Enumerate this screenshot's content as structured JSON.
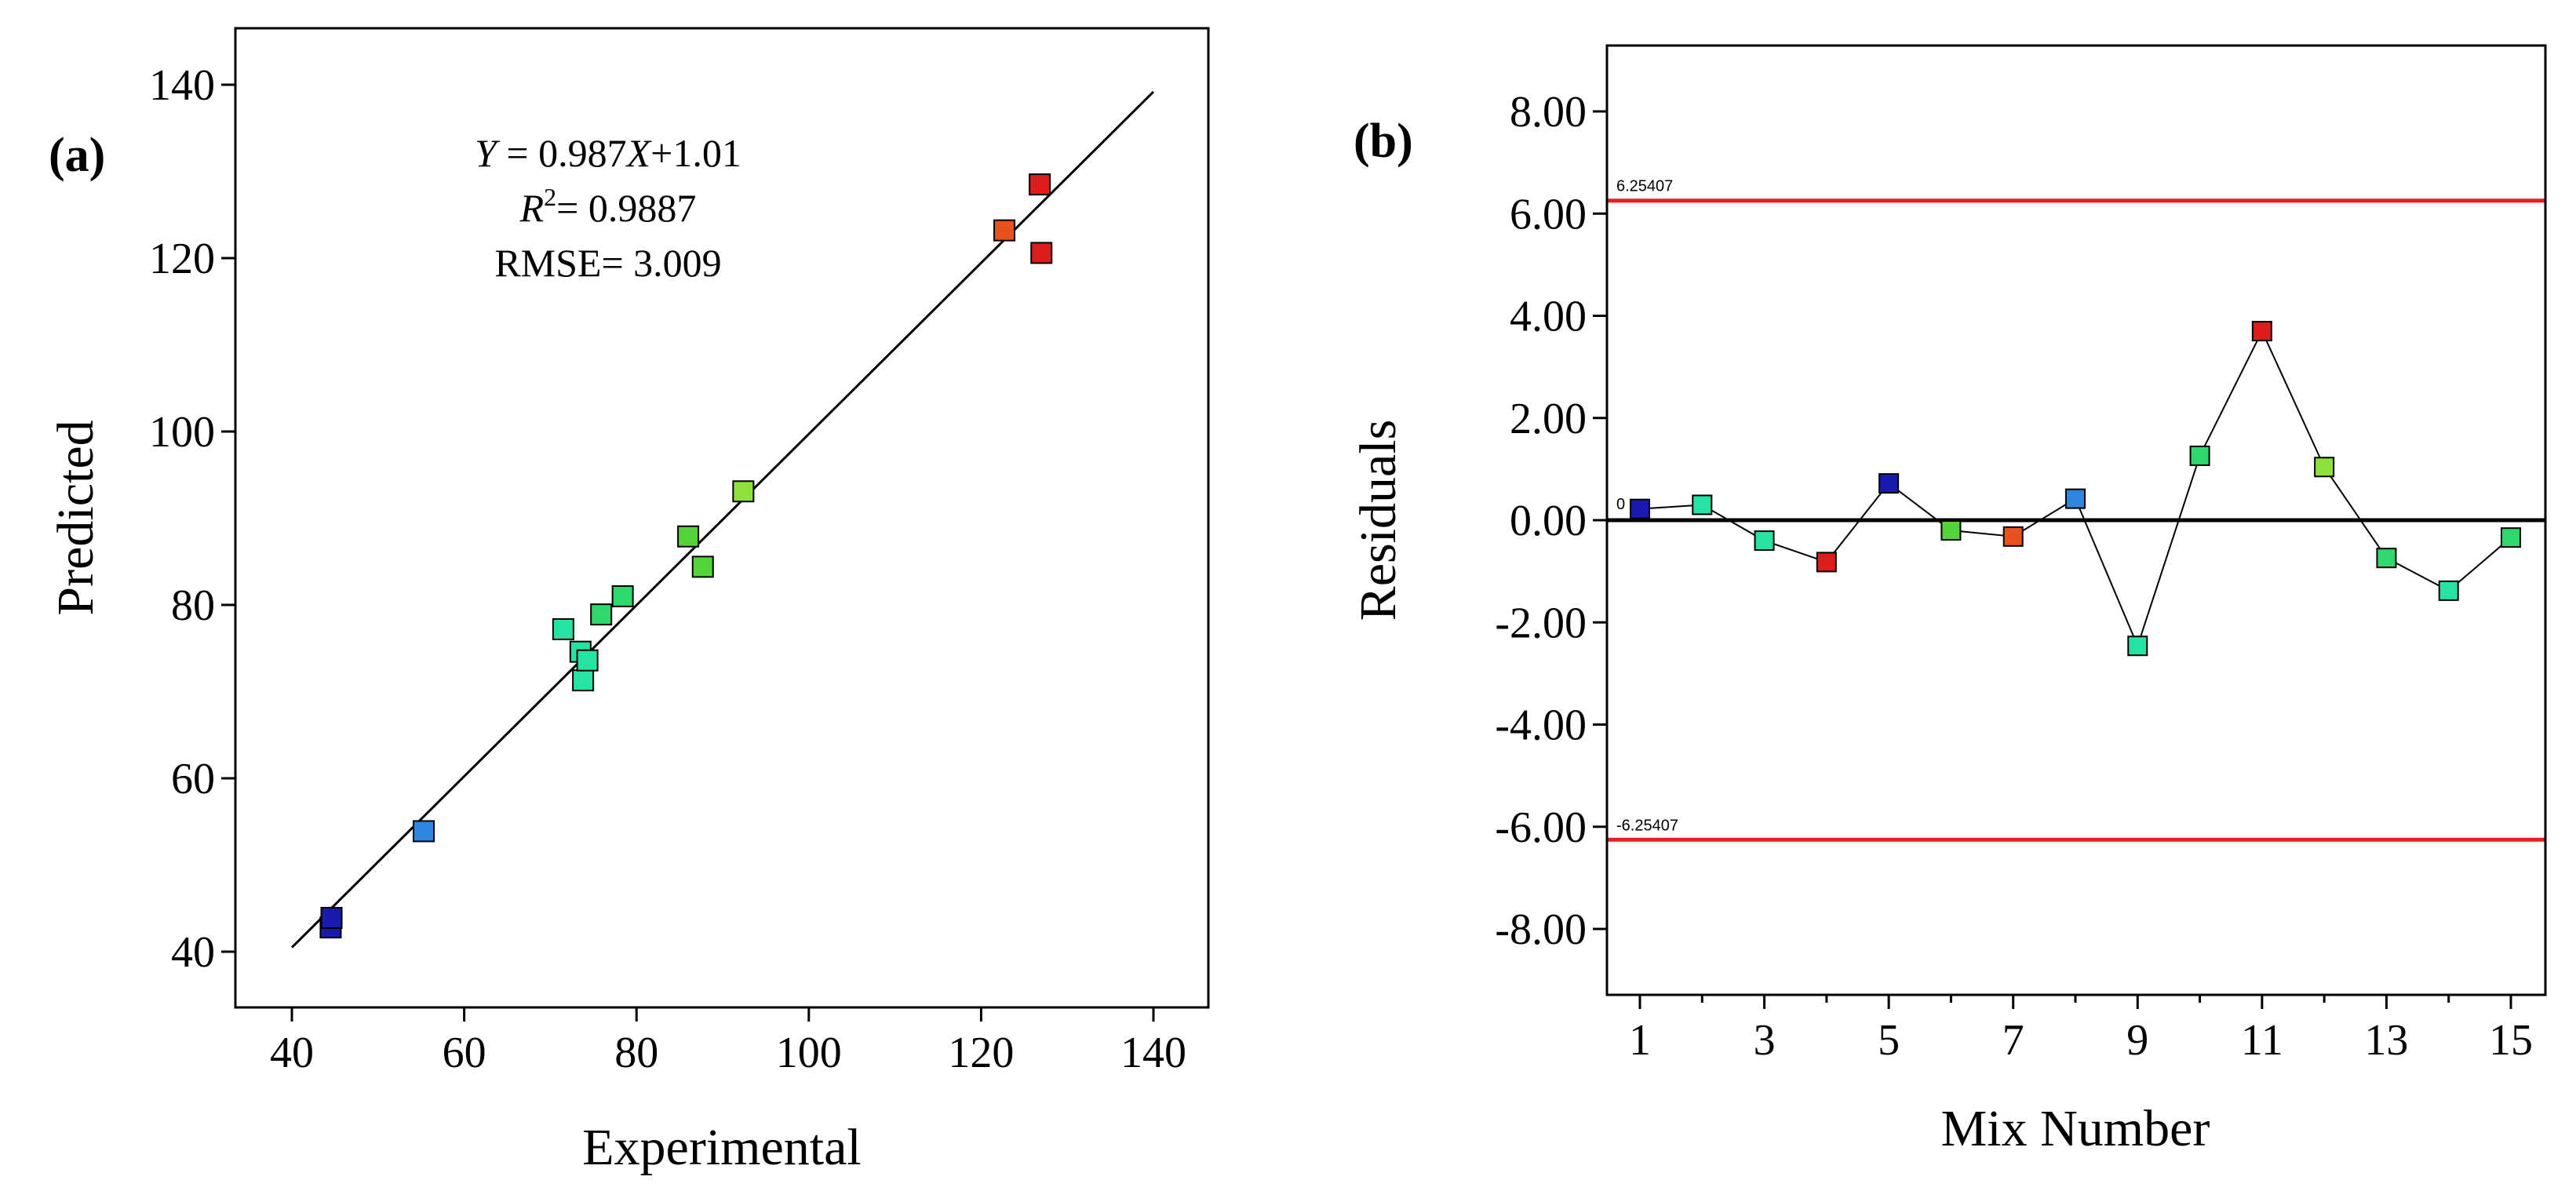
{
  "chart_data": [
    {
      "type": "scatter",
      "panel_label": "(a)",
      "xlabel": "Experimental",
      "ylabel": "Predicted",
      "xlim": [
        40,
        140
      ],
      "ylim": [
        40,
        140
      ],
      "xticks": [
        40,
        60,
        80,
        100,
        120,
        140
      ],
      "yticks": [
        40,
        60,
        80,
        100,
        120,
        140
      ],
      "fit_line": {
        "slope": 0.987,
        "intercept": 1.01,
        "x_range": [
          40,
          140
        ]
      },
      "annotations": {
        "equation_y": "Y",
        "equation_mid": " = 0.987",
        "equation_x": "X",
        "equation_tail": "+1.01",
        "r2_r": "R",
        "r2_sup": "2",
        "r2_tail": "= 0.9887",
        "rmse": "RMSE= 3.009"
      },
      "points": [
        {
          "x": 44.5,
          "y": 42.8,
          "color": "#1a1ab0"
        },
        {
          "x": 44.6,
          "y": 43.9,
          "color": "#1a1ab0"
        },
        {
          "x": 55.3,
          "y": 53.9,
          "color": "#2f86df"
        },
        {
          "x": 71.5,
          "y": 77.2,
          "color": "#27e3a2"
        },
        {
          "x": 73.5,
          "y": 74.6,
          "color": "#27e3a2"
        },
        {
          "x": 73.8,
          "y": 71.3,
          "color": "#27e3a2"
        },
        {
          "x": 74.3,
          "y": 73.6,
          "color": "#27e3a2"
        },
        {
          "x": 75.9,
          "y": 78.9,
          "color": "#2ed86a"
        },
        {
          "x": 78.4,
          "y": 81.0,
          "color": "#2ed86a"
        },
        {
          "x": 86.0,
          "y": 87.9,
          "color": "#55d33a"
        },
        {
          "x": 87.7,
          "y": 84.4,
          "color": "#55d33a"
        },
        {
          "x": 92.4,
          "y": 93.1,
          "color": "#8ee03a"
        },
        {
          "x": 122.7,
          "y": 123.2,
          "color": "#e8521c"
        },
        {
          "x": 126.8,
          "y": 128.5,
          "color": "#dd1c1c"
        },
        {
          "x": 127.0,
          "y": 120.6,
          "color": "#dd1c1c"
        }
      ]
    },
    {
      "type": "line",
      "panel_label": "(b)",
      "xlabel": "Mix Number",
      "ylabel": "Residuals",
      "xlim": [
        0.5,
        15.5
      ],
      "ylim": [
        -8.8,
        8.8
      ],
      "xticks": [
        1,
        3,
        5,
        7,
        9,
        11,
        13,
        15
      ],
      "yticks": [
        "8.00",
        "6.00",
        "4.00",
        "2.00",
        "0.00",
        "-2.00",
        "-4.00",
        "-6.00",
        "-8.00"
      ],
      "limits": [
        {
          "value": 6.25407,
          "label": "6.25407",
          "color": "#e61e1e"
        },
        {
          "value": -6.25407,
          "label": "-6.25407",
          "color": "#e61e1e"
        }
      ],
      "zero_line": {
        "value": 0,
        "label": "0"
      },
      "points": [
        {
          "x": 1,
          "y": 0.22,
          "color": "#1a1ab0"
        },
        {
          "x": 2,
          "y": 0.3,
          "color": "#27e3a2"
        },
        {
          "x": 3,
          "y": -0.4,
          "color": "#27e3a2"
        },
        {
          "x": 4,
          "y": -0.82,
          "color": "#dd1c1c"
        },
        {
          "x": 5,
          "y": 0.72,
          "color": "#1a1ab0"
        },
        {
          "x": 6,
          "y": -0.2,
          "color": "#55d33a"
        },
        {
          "x": 7,
          "y": -0.32,
          "color": "#e8521c"
        },
        {
          "x": 8,
          "y": 0.42,
          "color": "#2f86df"
        },
        {
          "x": 9,
          "y": -2.46,
          "color": "#27e3a2"
        },
        {
          "x": 10,
          "y": 1.26,
          "color": "#2ed86a"
        },
        {
          "x": 11,
          "y": 3.7,
          "color": "#dd1c1c"
        },
        {
          "x": 12,
          "y": 1.04,
          "color": "#8ee03a"
        },
        {
          "x": 13,
          "y": -0.74,
          "color": "#2ed86a"
        },
        {
          "x": 14,
          "y": -1.38,
          "color": "#27e3a2"
        },
        {
          "x": 15,
          "y": -0.34,
          "color": "#2ed86a"
        }
      ]
    }
  ]
}
